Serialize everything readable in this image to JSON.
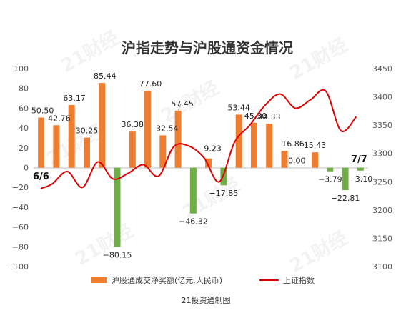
{
  "chart_data": {
    "type": "bar+line",
    "title": "沪指走势与沪股通资金情况",
    "source": "21投资通制图",
    "watermark": "21财经",
    "colors": {
      "positive_bar": "#ED7D31",
      "negative_bar": "#70AD47",
      "line": "#E00000",
      "axis_text": "#595959",
      "zero_line": "#bfbfbf"
    },
    "left_axis": {
      "min": -100,
      "max": 100,
      "ticks": [
        -100,
        -80,
        -60,
        -40,
        -20,
        0,
        20,
        40,
        60,
        80,
        100
      ]
    },
    "right_axis": {
      "min": 3100,
      "max": 3450,
      "ticks": [
        3100,
        3150,
        3200,
        3250,
        3300,
        3350,
        3400,
        3450
      ]
    },
    "date_labels": {
      "start": "6/6",
      "end": "7/7"
    },
    "series": [
      {
        "name": "沪股通成交净买额(亿元,人民币)",
        "kind": "bar",
        "values": [
          50.5,
          42.76,
          63.17,
          30.25,
          85.44,
          -80.15,
          36.38,
          77.6,
          32.54,
          57.45,
          -46.32,
          9.23,
          -17.85,
          53.44,
          45.3,
          44.33,
          16.86,
          0.0,
          15.43,
          -3.79,
          -22.81,
          -3.1
        ],
        "labels": [
          "50.50",
          "42.76",
          "63.17",
          "30.25",
          "85.44",
          "−80.15",
          "36.38",
          "77.60",
          "32.54",
          "57.45",
          "−46.32",
          "9.23",
          "−17.85",
          "53.44",
          "45.30",
          "44.33",
          "16.86",
          "0.00",
          "15.43",
          "−3.79",
          "−22.81",
          "−3.10"
        ]
      },
      {
        "name": "上证指数",
        "kind": "line",
        "values": [
          3238,
          3246,
          3268,
          3240,
          3285,
          3255,
          3265,
          3280,
          3260,
          3312,
          3313,
          3292,
          3250,
          3320,
          3350,
          3385,
          3405,
          3380,
          3395,
          3410,
          3340,
          3365
        ]
      }
    ]
  }
}
